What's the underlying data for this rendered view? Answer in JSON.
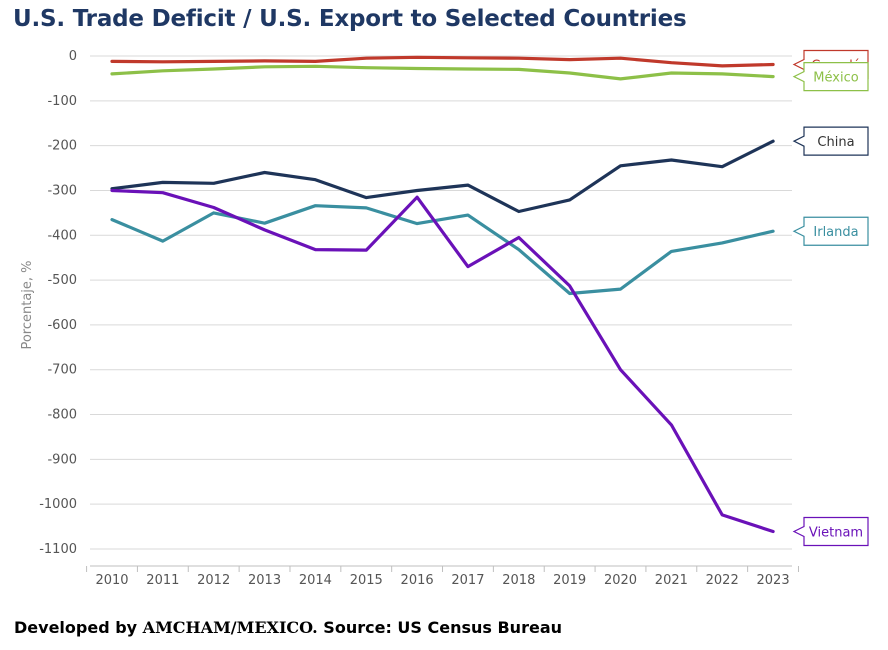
{
  "footer": {
    "prefix": "Developed by ",
    "brand": "AMCHAM/MEXICO.",
    "suffix": " Source: US Census Bureau"
  },
  "chart_data": {
    "type": "line",
    "title": "U.S. Trade Deficit / U.S. Export to Selected Countries",
    "xlabel": "",
    "ylabel": "Porcentaje, %",
    "ylim": [
      -1100,
      0
    ],
    "yticks": [
      0,
      -100,
      -200,
      -300,
      -400,
      -500,
      -600,
      -700,
      -800,
      -900,
      -1000,
      -1100
    ],
    "ytick_labels": [
      "0",
      "-100",
      "-200",
      "-300",
      "-400",
      "-500",
      "-600",
      "-700",
      "-800",
      "-900",
      "-1000",
      "-1100"
    ],
    "grid": true,
    "legend_position": "right (line-end callouts)",
    "categories": [
      "2010",
      "2011",
      "2012",
      "2013",
      "2014",
      "2015",
      "2016",
      "2017",
      "2018",
      "2019",
      "2020",
      "2021",
      "2022",
      "2023"
    ],
    "series": [
      {
        "name": "Canadá",
        "color": "#c0392b",
        "values": [
          -12,
          -13,
          -12,
          -11,
          -12,
          -5,
          -3,
          -4,
          -5,
          -8,
          -5,
          -15,
          -22,
          -19
        ]
      },
      {
        "name": "México",
        "color": "#8dc048",
        "values": [
          -40,
          -33,
          -29,
          -24,
          -23,
          -26,
          -28,
          -29,
          -30,
          -38,
          -51,
          -38,
          -40,
          -46
        ]
      },
      {
        "name": "China",
        "color": "#1e3458",
        "values": [
          -296,
          -282,
          -284,
          -260,
          -276,
          -316,
          -300,
          -288,
          -347,
          -321,
          -245,
          -232,
          -247,
          -190
        ]
      },
      {
        "name": "Irlanda",
        "color": "#3a8fa0",
        "values": [
          -365,
          -413,
          -350,
          -373,
          -334,
          -339,
          -374,
          -355,
          -432,
          -530,
          -520,
          -436,
          -417,
          -391
        ]
      },
      {
        "name": "Vietnam",
        "color": "#6a11b8",
        "values": [
          -300,
          -305,
          -338,
          -388,
          -432,
          -433,
          -315,
          -470,
          -405,
          -513,
          -700,
          -823,
          -1024,
          -1061
        ]
      }
    ]
  }
}
